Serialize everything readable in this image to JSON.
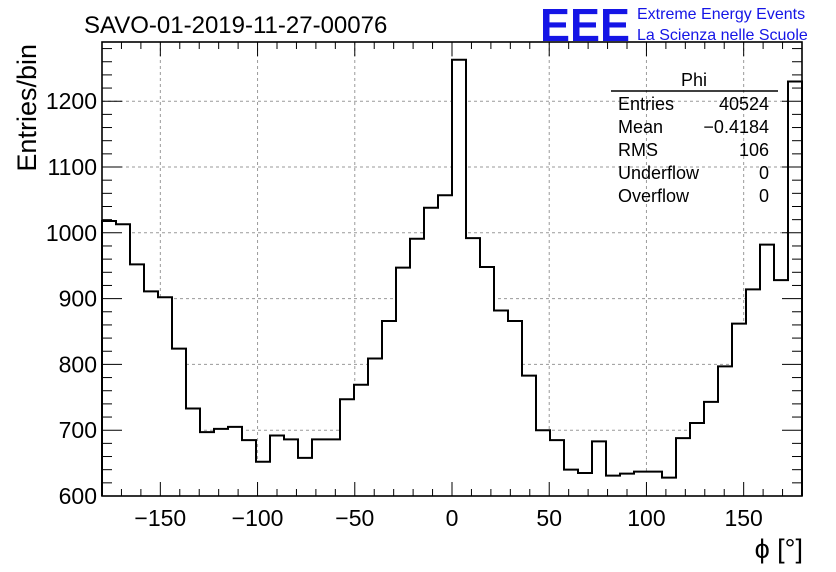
{
  "header": {
    "run_title": "SAVO-01-2019-11-27-00076",
    "brand_logo": "EEE",
    "brand_line1": "Extreme Energy Events",
    "brand_line2": "La Scienza nelle Scuole",
    "brand_color": "#1515e6"
  },
  "stats": {
    "title": "Phi",
    "rows": [
      {
        "label": "Entries",
        "value": "40524"
      },
      {
        "label": "Mean",
        "value": "−0.4184"
      },
      {
        "label": "RMS",
        "value": "106"
      },
      {
        "label": "Underflow",
        "value": "0"
      },
      {
        "label": "Overflow",
        "value": "0"
      }
    ]
  },
  "chart_data": {
    "type": "histogram",
    "title": "SAVO-01-2019-11-27-00076",
    "xlabel": "ϕ [°]",
    "ylabel": "Entries/bin",
    "xlim": [
      -180,
      180
    ],
    "ylim": [
      600,
      1290
    ],
    "bin_width": 7.2,
    "grid": true,
    "x_ticks": [
      -150,
      -100,
      -50,
      0,
      50,
      100,
      150
    ],
    "x_tick_labels": [
      "−150",
      "−100",
      "−50",
      "0",
      "50",
      "100",
      "150"
    ],
    "y_ticks": [
      600,
      700,
      800,
      900,
      1000,
      1100,
      1200
    ],
    "y_tick_labels": [
      "600",
      "700",
      "800",
      "900",
      "1000",
      "1100",
      "1200"
    ],
    "values": [
      1018,
      1013,
      952,
      911,
      902,
      824,
      733,
      697,
      702,
      705,
      685,
      652,
      692,
      686,
      658,
      686,
      686,
      747,
      769,
      809,
      866,
      947,
      991,
      1038,
      1057,
      1263,
      992,
      948,
      882,
      866,
      783,
      700,
      685,
      640,
      635,
      683,
      631,
      634,
      637,
      637,
      628,
      688,
      711,
      743,
      797,
      862,
      914,
      982,
      928,
      1230
    ]
  }
}
